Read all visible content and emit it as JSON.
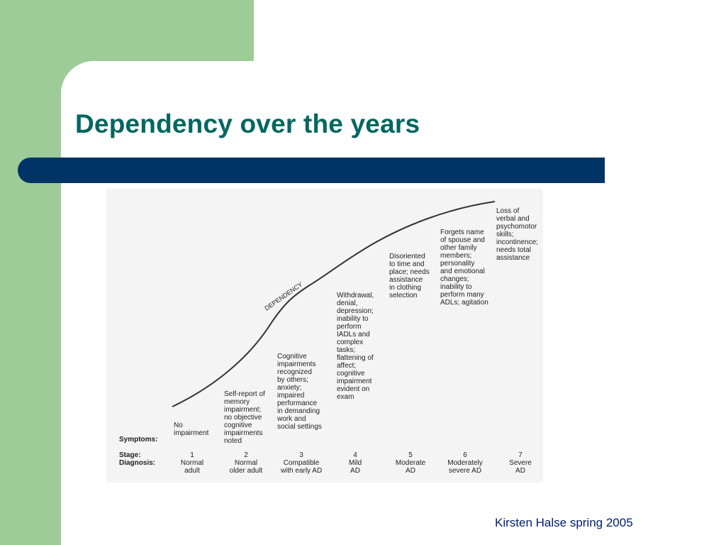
{
  "slide": {
    "title": "Dependency over the years",
    "footer": "Kirsten Halse spring 2005"
  },
  "figure": {
    "curve_label": "DEPENDENCY",
    "row_labels": {
      "symptoms": "Symptoms:",
      "stage": "Stage:",
      "diagnosis": "Diagnosis:"
    },
    "symptoms": [
      "No\nimpairment",
      "Self-report of\nmemory\nimpairment;\nno objective\ncognitive\nimpairments\nnoted",
      "Cognitive\nimpairments\nrecognized\nby others;\nanxiety;\nimpaired\nperformance\nin demanding\nwork and\nsocial settings",
      "Withdrawal,\ndenial,\ndepression;\ninability to\nperform\nIADLs and\ncomplex\ntasks;\nflattening of\naffect;\ncognitive\nimpairment\nevident on\nexam",
      "Disoriented\nto time and\nplace; needs\nassistance\nin clothing\nselection",
      "Forgets name\nof spouse and\nother family\nmembers;\npersonality\nand emotional\nchanges;\ninability to\nperform many\nADLs; agitation",
      "Loss of\nverbal and\npsychomotor\nskills;\nincontinence;\nneeds total\nassistance"
    ],
    "stages": [
      {
        "number": "1",
        "diagnosis": "Normal\nadult"
      },
      {
        "number": "2",
        "diagnosis": "Normal\nolder adult"
      },
      {
        "number": "3",
        "diagnosis": "Compatible\nwith early AD"
      },
      {
        "number": "4",
        "diagnosis": "Mild\nAD"
      },
      {
        "number": "5",
        "diagnosis": "Moderate\nAD"
      },
      {
        "number": "6",
        "diagnosis": "Moderately\nsevere AD"
      },
      {
        "number": "7",
        "diagnosis": "Severe\nAD"
      }
    ]
  }
}
